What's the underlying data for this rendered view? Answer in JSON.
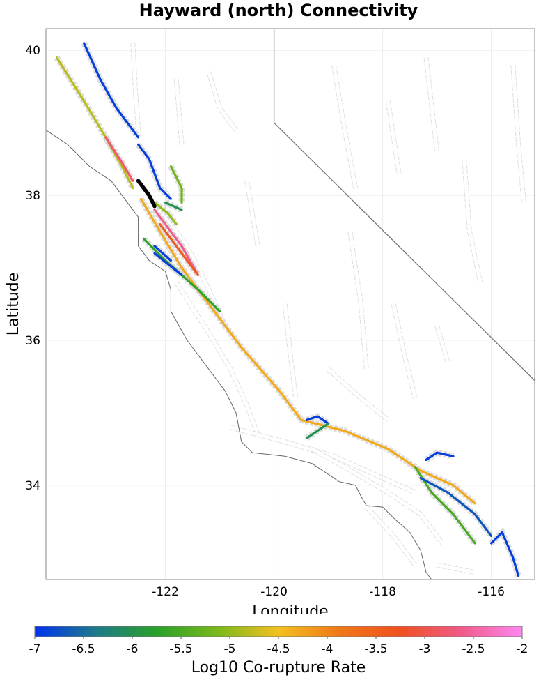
{
  "title": "Hayward (north) Connectivity",
  "chart_data": {
    "type": "map",
    "title": "Hayward (north) Connectivity",
    "xlabel": "Longitude",
    "ylabel": "Latitude",
    "xlim": [
      -124.2,
      -115.2
    ],
    "ylim": [
      32.7,
      40.3
    ],
    "x_ticks": [
      -122,
      -120,
      -118,
      -116
    ],
    "y_ticks": [
      34,
      36,
      38,
      40
    ],
    "grid": true,
    "state_border": [
      [
        -120.0,
        40.3
      ],
      [
        -120.0,
        39.0
      ],
      [
        -114.6,
        35.0
      ]
    ],
    "coastline": [
      [
        -124.2,
        38.9
      ],
      [
        -123.8,
        38.7
      ],
      [
        -123.4,
        38.4
      ],
      [
        -123.0,
        38.2
      ],
      [
        -122.8,
        38.0
      ],
      [
        -122.5,
        37.7
      ],
      [
        -122.5,
        37.3
      ],
      [
        -122.3,
        37.1
      ],
      [
        -122.0,
        36.95
      ],
      [
        -121.9,
        36.7
      ],
      [
        -121.9,
        36.4
      ],
      [
        -121.6,
        36.0
      ],
      [
        -121.2,
        35.6
      ],
      [
        -120.9,
        35.3
      ],
      [
        -120.7,
        35.0
      ],
      [
        -120.6,
        34.6
      ],
      [
        -120.4,
        34.45
      ],
      [
        -119.8,
        34.4
      ],
      [
        -119.3,
        34.3
      ],
      [
        -118.8,
        34.05
      ],
      [
        -118.5,
        34.0
      ],
      [
        -118.4,
        33.85
      ],
      [
        -118.3,
        33.72
      ],
      [
        -118.0,
        33.7
      ],
      [
        -117.8,
        33.55
      ],
      [
        -117.5,
        33.35
      ],
      [
        -117.3,
        33.1
      ],
      [
        -117.2,
        32.8
      ],
      [
        -117.1,
        32.7
      ]
    ],
    "colorbar": {
      "label": "Log10 Co-rupture Rate",
      "min": -7,
      "max": -2,
      "ticks": [
        "-7",
        "-6.5",
        "-6",
        "-5.5",
        "-5",
        "-4.5",
        "-4",
        "-3.5",
        "-3",
        "-2.5",
        "-2"
      ],
      "colors": [
        "#0033ee",
        "#1e7a8a",
        "#2aa02a",
        "#7ab81a",
        "#f4c020",
        "#f07818",
        "#f05020",
        "#f05a8a",
        "#ff88ee"
      ]
    },
    "highlight_section": {
      "name": "Hayward (north)",
      "color": "#000000",
      "points": [
        [
          -122.5,
          38.2
        ],
        [
          -122.3,
          38.0
        ],
        [
          -122.2,
          37.85
        ]
      ]
    },
    "ruptures": [
      {
        "value": -4.3,
        "points": [
          [
            -122.45,
            37.95
          ],
          [
            -122.1,
            37.5
          ],
          [
            -121.7,
            37.0
          ],
          [
            -121.0,
            36.3
          ],
          [
            -120.6,
            35.9
          ],
          [
            -119.9,
            35.3
          ],
          [
            -119.5,
            34.9
          ],
          [
            -118.7,
            34.75
          ],
          [
            -117.9,
            34.5
          ],
          [
            -117.3,
            34.2
          ],
          [
            -116.7,
            34.0
          ],
          [
            -116.3,
            33.75
          ]
        ]
      },
      {
        "value": -4.8,
        "points": [
          [
            -124.0,
            39.9
          ],
          [
            -123.5,
            39.3
          ],
          [
            -123.1,
            38.8
          ],
          [
            -122.8,
            38.4
          ],
          [
            -122.6,
            38.1
          ]
        ]
      },
      {
        "value": -6.9,
        "points": [
          [
            -123.5,
            40.1
          ],
          [
            -123.2,
            39.6
          ],
          [
            -122.9,
            39.2
          ],
          [
            -122.5,
            38.8
          ]
        ]
      },
      {
        "value": -6.9,
        "points": [
          [
            -122.5,
            38.7
          ],
          [
            -122.3,
            38.5
          ],
          [
            -122.1,
            38.1
          ],
          [
            -121.9,
            37.95
          ]
        ]
      },
      {
        "value": -2.8,
        "points": [
          [
            -123.1,
            38.8
          ],
          [
            -122.8,
            38.45
          ],
          [
            -122.6,
            38.2
          ]
        ]
      },
      {
        "value": -2.6,
        "points": [
          [
            -122.2,
            37.8
          ],
          [
            -122.0,
            37.6
          ],
          [
            -121.7,
            37.3
          ],
          [
            -121.4,
            36.9
          ]
        ]
      },
      {
        "value": -3.4,
        "points": [
          [
            -122.1,
            37.6
          ],
          [
            -121.7,
            37.2
          ],
          [
            -121.4,
            36.9
          ]
        ]
      },
      {
        "value": -5.2,
        "points": [
          [
            -121.9,
            38.4
          ],
          [
            -121.7,
            38.1
          ],
          [
            -121.7,
            37.9
          ]
        ]
      },
      {
        "value": -5.0,
        "points": [
          [
            -122.2,
            37.9
          ],
          [
            -121.95,
            37.75
          ],
          [
            -121.8,
            37.6
          ]
        ]
      },
      {
        "value": -6.0,
        "points": [
          [
            -122.0,
            37.9
          ],
          [
            -121.7,
            37.8
          ]
        ]
      },
      {
        "value": -5.7,
        "points": [
          [
            -122.4,
            37.4
          ],
          [
            -122.0,
            37.1
          ],
          [
            -121.4,
            36.7
          ],
          [
            -121.0,
            36.4
          ]
        ]
      },
      {
        "value": -6.9,
        "points": [
          [
            -122.2,
            37.3
          ],
          [
            -121.9,
            37.1
          ]
        ]
      },
      {
        "value": -6.9,
        "points": [
          [
            -122.2,
            37.2
          ],
          [
            -121.7,
            36.9
          ]
        ]
      },
      {
        "value": -6.9,
        "points": [
          [
            -119.4,
            34.9
          ],
          [
            -119.2,
            34.95
          ],
          [
            -119.0,
            34.85
          ]
        ]
      },
      {
        "value": -6.0,
        "points": [
          [
            -119.4,
            34.65
          ],
          [
            -119.0,
            34.85
          ]
        ]
      },
      {
        "value": -6.9,
        "points": [
          [
            -117.2,
            34.35
          ],
          [
            -117.0,
            34.45
          ],
          [
            -116.7,
            34.4
          ]
        ]
      },
      {
        "value": -5.5,
        "points": [
          [
            -117.4,
            34.25
          ],
          [
            -117.1,
            33.9
          ],
          [
            -116.7,
            33.6
          ],
          [
            -116.3,
            33.2
          ]
        ]
      },
      {
        "value": -6.7,
        "points": [
          [
            -117.3,
            34.1
          ],
          [
            -116.8,
            33.9
          ],
          [
            -116.3,
            33.6
          ],
          [
            -116.0,
            33.3
          ]
        ]
      },
      {
        "value": -6.9,
        "points": [
          [
            -116.0,
            33.2
          ],
          [
            -115.8,
            33.35
          ],
          [
            -115.6,
            33.0
          ],
          [
            -115.5,
            32.75
          ]
        ]
      }
    ],
    "grey_fault_traces": [
      [
        [
          -122.6,
          40.1
        ],
        [
          -122.55,
          39.4
        ],
        [
          -122.5,
          38.9
        ]
      ],
      [
        [
          -121.2,
          39.7
        ],
        [
          -121.0,
          39.2
        ],
        [
          -120.7,
          38.9
        ]
      ],
      [
        [
          -121.8,
          39.6
        ],
        [
          -121.7,
          38.7
        ]
      ],
      [
        [
          -122.0,
          37.7
        ],
        [
          -121.6,
          37.3
        ],
        [
          -121.2,
          36.7
        ],
        [
          -120.9,
          36.2
        ]
      ],
      [
        [
          -121.8,
          36.8
        ],
        [
          -121.2,
          36.1
        ],
        [
          -120.8,
          35.6
        ],
        [
          -120.5,
          35.1
        ],
        [
          -120.3,
          34.7
        ]
      ],
      [
        [
          -119.8,
          36.5
        ],
        [
          -119.7,
          35.8
        ],
        [
          -119.6,
          35.2
        ]
      ],
      [
        [
          -118.6,
          37.5
        ],
        [
          -118.4,
          36.5
        ],
        [
          -118.3,
          35.6
        ]
      ],
      [
        [
          -117.8,
          36.5
        ],
        [
          -117.6,
          35.8
        ],
        [
          -117.4,
          35.2
        ]
      ],
      [
        [
          -117.0,
          36.2
        ],
        [
          -116.8,
          35.7
        ]
      ],
      [
        [
          -119.0,
          35.6
        ],
        [
          -118.4,
          35.2
        ],
        [
          -117.9,
          34.9
        ]
      ],
      [
        [
          -120.8,
          34.8
        ],
        [
          -119.8,
          34.6
        ],
        [
          -118.9,
          34.4
        ],
        [
          -118.0,
          34.1
        ],
        [
          -117.4,
          33.9
        ]
      ],
      [
        [
          -119.3,
          34.5
        ],
        [
          -118.7,
          34.25
        ],
        [
          -117.9,
          33.9
        ],
        [
          -117.3,
          33.6
        ],
        [
          -116.9,
          33.2
        ]
      ],
      [
        [
          -118.3,
          33.7
        ],
        [
          -117.8,
          33.3
        ],
        [
          -117.4,
          32.9
        ]
      ],
      [
        [
          -117.0,
          32.9
        ],
        [
          -116.3,
          32.8
        ]
      ],
      [
        [
          -116.5,
          38.5
        ],
        [
          -116.4,
          37.5
        ],
        [
          -116.2,
          36.8
        ]
      ],
      [
        [
          -115.6,
          39.8
        ],
        [
          -115.5,
          38.7
        ],
        [
          -115.4,
          37.9
        ]
      ],
      [
        [
          -118.9,
          39.8
        ],
        [
          -118.7,
          38.9
        ],
        [
          -118.5,
          38.1
        ]
      ],
      [
        [
          -117.9,
          39.3
        ],
        [
          -117.7,
          38.3
        ]
      ],
      [
        [
          -117.2,
          39.9
        ],
        [
          -117.0,
          38.6
        ]
      ],
      [
        [
          -120.5,
          38.2
        ],
        [
          -120.3,
          37.3
        ]
      ]
    ]
  }
}
